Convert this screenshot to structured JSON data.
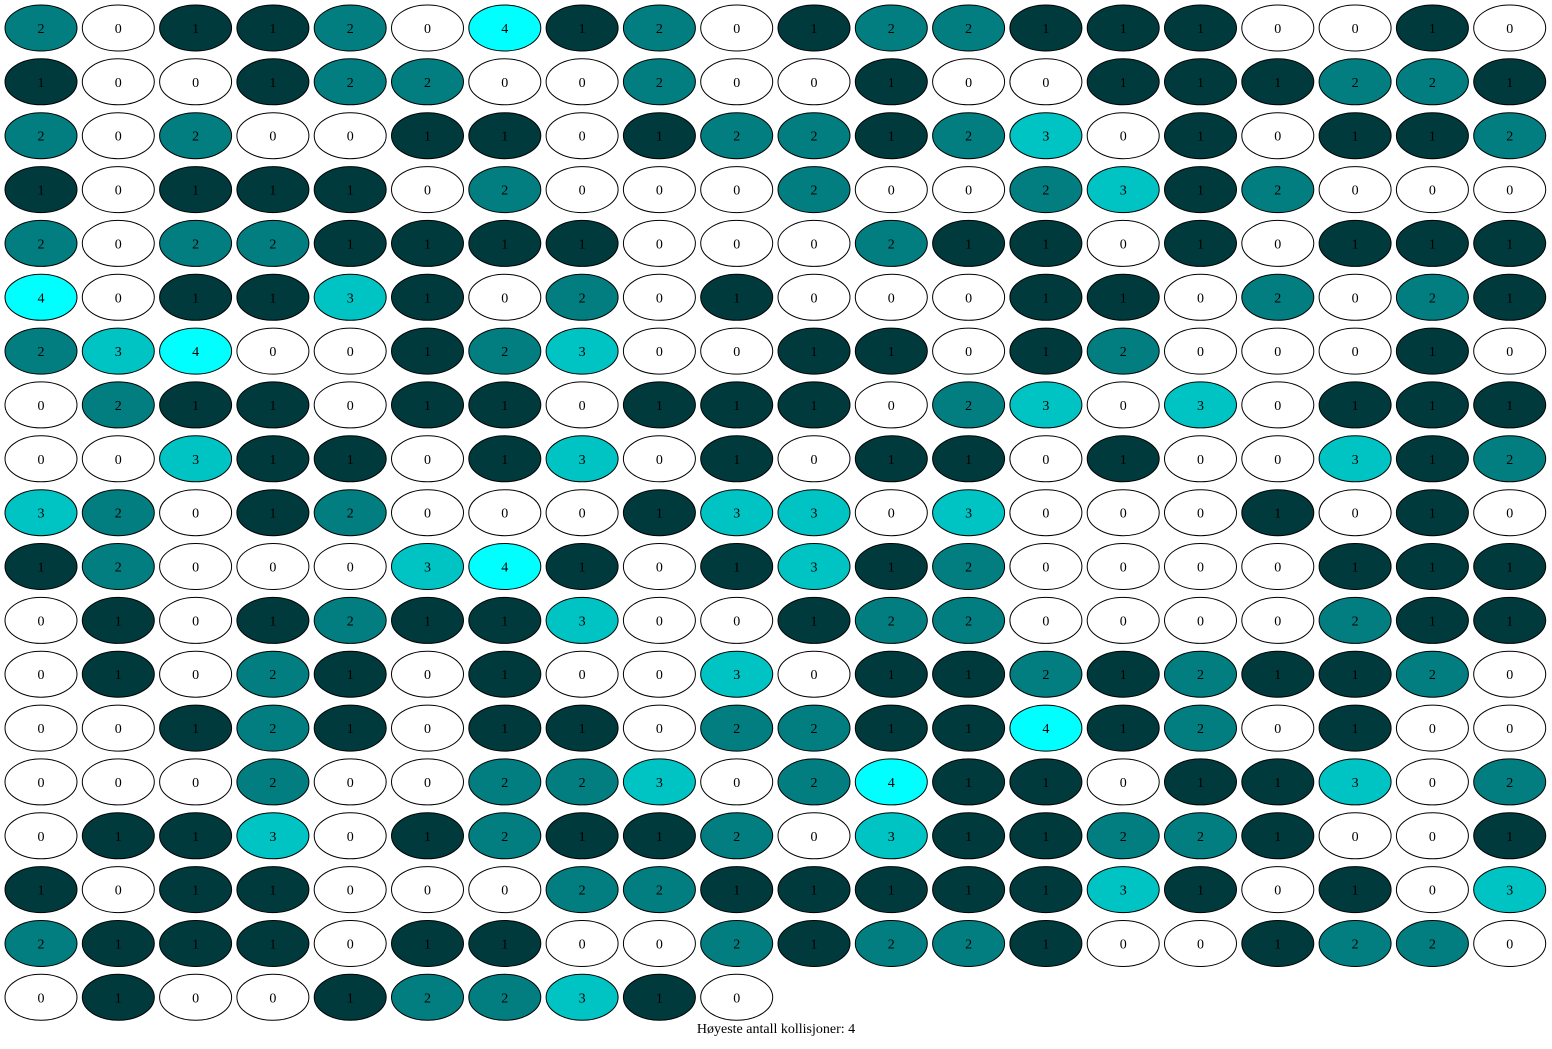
{
  "colors": {
    "0": "#ffffff",
    "1": "#013a3c",
    "2": "#027d80",
    "3": "#00c4c4",
    "4": "#00ffff"
  },
  "rows": [
    [
      2,
      0,
      1,
      1,
      2,
      0,
      4,
      1,
      2,
      0,
      1,
      2,
      2,
      1,
      1,
      1,
      0,
      0,
      1,
      0
    ],
    [
      1,
      0,
      0,
      1,
      2,
      2,
      0,
      0,
      2,
      0,
      0,
      1,
      0,
      0,
      1,
      1,
      1,
      2,
      2,
      1
    ],
    [
      2,
      0,
      2,
      0,
      0,
      1,
      1,
      0,
      1,
      2,
      2,
      1,
      2,
      3,
      0,
      1,
      0,
      1,
      1,
      2
    ],
    [
      1,
      0,
      1,
      1,
      1,
      0,
      2,
      0,
      0,
      0,
      2,
      0,
      0,
      2,
      3,
      1,
      2,
      0,
      0,
      0
    ],
    [
      2,
      0,
      2,
      2,
      1,
      1,
      1,
      1,
      0,
      0,
      0,
      2,
      1,
      1,
      0,
      1,
      0,
      1,
      1,
      1
    ],
    [
      4,
      0,
      1,
      1,
      3,
      1,
      0,
      2,
      0,
      1,
      0,
      0,
      0,
      1,
      1,
      0,
      2,
      0,
      2,
      1
    ],
    [
      2,
      3,
      4,
      0,
      0,
      1,
      2,
      3,
      0,
      0,
      1,
      1,
      0,
      1,
      2,
      0,
      0,
      0,
      1,
      0
    ],
    [
      0,
      2,
      1,
      1,
      0,
      1,
      1,
      0,
      1,
      1,
      1,
      0,
      2,
      3,
      0,
      3,
      0,
      1,
      1,
      1
    ],
    [
      0,
      0,
      3,
      1,
      1,
      0,
      1,
      3,
      0,
      1,
      0,
      1,
      1,
      0,
      1,
      0,
      0,
      3,
      1,
      2
    ],
    [
      3,
      2,
      0,
      1,
      2,
      0,
      0,
      0,
      1,
      3,
      3,
      0,
      3,
      0,
      0,
      0,
      1,
      0,
      1,
      0
    ],
    [
      1,
      2,
      0,
      0,
      0,
      3,
      4,
      1,
      0,
      1,
      3,
      1,
      2,
      0,
      0,
      0,
      0,
      1,
      1,
      1
    ],
    [
      0,
      1,
      0,
      1,
      2,
      1,
      1,
      3,
      0,
      0,
      1,
      2,
      2,
      0,
      0,
      0,
      0,
      2,
      1,
      1
    ],
    [
      0,
      1,
      0,
      2,
      1,
      0,
      1,
      0,
      0,
      3,
      0,
      1,
      1,
      2,
      1,
      2,
      1,
      1,
      2,
      0
    ],
    [
      0,
      0,
      1,
      2,
      1,
      0,
      1,
      1,
      0,
      2,
      2,
      1,
      1,
      4,
      1,
      2,
      0,
      1,
      0,
      0
    ],
    [
      0,
      0,
      0,
      2,
      0,
      0,
      2,
      2,
      3,
      0,
      2,
      4,
      1,
      1,
      0,
      1,
      1,
      3,
      0,
      2
    ],
    [
      0,
      1,
      1,
      3,
      0,
      1,
      2,
      1,
      1,
      2,
      0,
      3,
      1,
      1,
      2,
      2,
      1,
      0,
      0,
      1
    ],
    [
      1,
      0,
      1,
      1,
      0,
      0,
      0,
      2,
      2,
      1,
      1,
      1,
      1,
      1,
      3,
      1,
      0,
      1,
      0,
      3
    ],
    [
      2,
      1,
      1,
      1,
      0,
      1,
      1,
      0,
      0,
      2,
      1,
      2,
      2,
      1,
      0,
      0,
      1,
      2,
      2,
      0
    ],
    [
      0,
      1,
      0,
      0,
      1,
      2,
      2,
      3,
      1,
      0
    ]
  ],
  "caption": "Høyeste antall kollisjoner: 4"
}
